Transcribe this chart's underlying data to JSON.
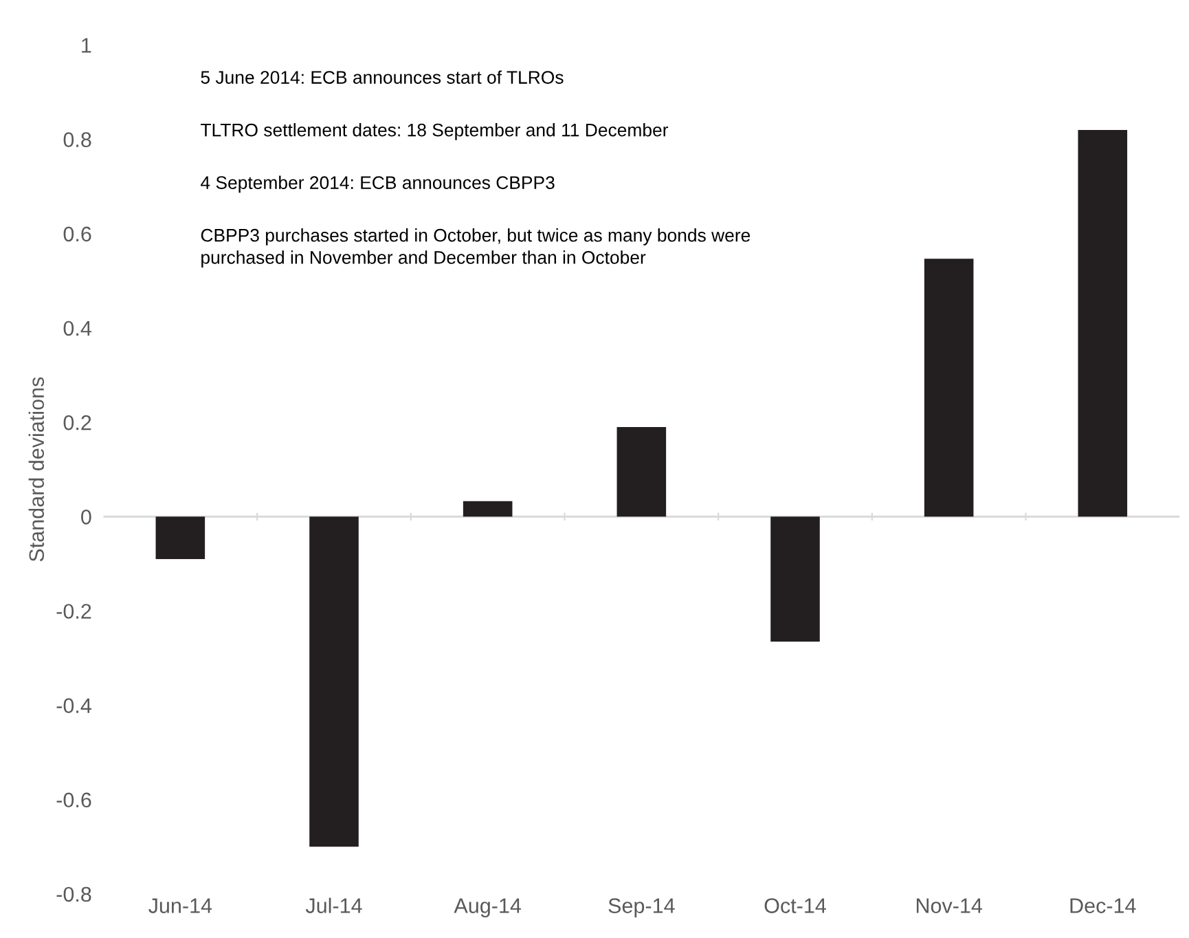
{
  "chart_data": {
    "type": "bar",
    "ylabel": "Standard deviations",
    "categories": [
      "Jun-14",
      "Jul-14",
      "Aug-14",
      "Sep-14",
      "Oct-14",
      "Nov-14",
      "Dec-14"
    ],
    "values": [
      -0.09,
      -0.7,
      0.033,
      0.19,
      -0.265,
      0.547,
      0.82
    ],
    "color": "#231f20",
    "ylim": [
      -0.8,
      1
    ],
    "yticks": [
      -0.8,
      -0.6,
      -0.4,
      -0.2,
      0,
      0.2,
      0.4,
      0.6,
      0.8,
      1
    ],
    "grid": false,
    "legend": false,
    "ref_lines": [
      {
        "axis": "y",
        "value": 0,
        "color": "#d9d9d9"
      }
    ],
    "annotations": [
      "5 June 2014: ECB announces start of TLROs",
      "TLTRO settlement dates: 18 September and 11 December",
      "4 September 2014: ECB announces CBPP3",
      "CBPP3 purchases started in October, but twice as many bonds were\npurchased in November and December than in October"
    ]
  }
}
